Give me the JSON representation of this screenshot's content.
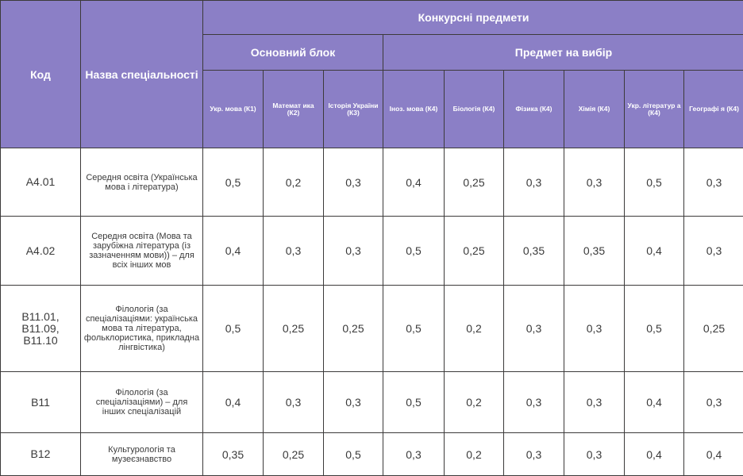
{
  "header": {
    "code": "Код",
    "name": "Назва спеціальності",
    "competitive": "Конкурсні предмети",
    "main_block": "Основний блок",
    "elective": "Предмет на вибір",
    "subjects": [
      "Укр. мова (К1)",
      "Математ ика (К2)",
      "Історія України (К3)",
      "Іноз. мова (К4)",
      "Біологія (К4)",
      "Фізика (К4)",
      "Хімія (К4)",
      "Укр. літератур а (К4)",
      "Географі я (К4)"
    ]
  },
  "rows": [
    {
      "code": "А4.01",
      "name": "Середня освіта (Українська мова і література)",
      "values": [
        "0,5",
        "0,2",
        "0,3",
        "0,4",
        "0,25",
        "0,3",
        "0,3",
        "0,5",
        "0,3"
      ]
    },
    {
      "code": "А4.02",
      "name": "Середня освіта (Мова та зарубіжна література (із зазначенням мови)) – для всіх інших мов",
      "values": [
        "0,4",
        "0,3",
        "0,3",
        "0,5",
        "0,25",
        "0,35",
        "0,35",
        "0,4",
        "0,3"
      ]
    },
    {
      "code": "В11.01, В11.09, В11.10",
      "name": "Філологія (за спеціалізаціями: українська мова та література, фольклористика, прикладна лінгвістика)",
      "values": [
        "0,5",
        "0,25",
        "0,25",
        "0,5",
        "0,2",
        "0,3",
        "0,3",
        "0,5",
        "0,25"
      ]
    },
    {
      "code": "В11",
      "name": "Філологія (за спеціалізаціями) – для інших спеціалізацій",
      "values": [
        "0,4",
        "0,3",
        "0,3",
        "0,5",
        "0,2",
        "0,3",
        "0,3",
        "0,4",
        "0,3"
      ]
    },
    {
      "code": "В12",
      "name": "Культурологія та музеєзнавство",
      "values": [
        "0,35",
        "0,25",
        "0,5",
        "0,3",
        "0,2",
        "0,3",
        "0,3",
        "0,4",
        "0,4"
      ]
    }
  ]
}
